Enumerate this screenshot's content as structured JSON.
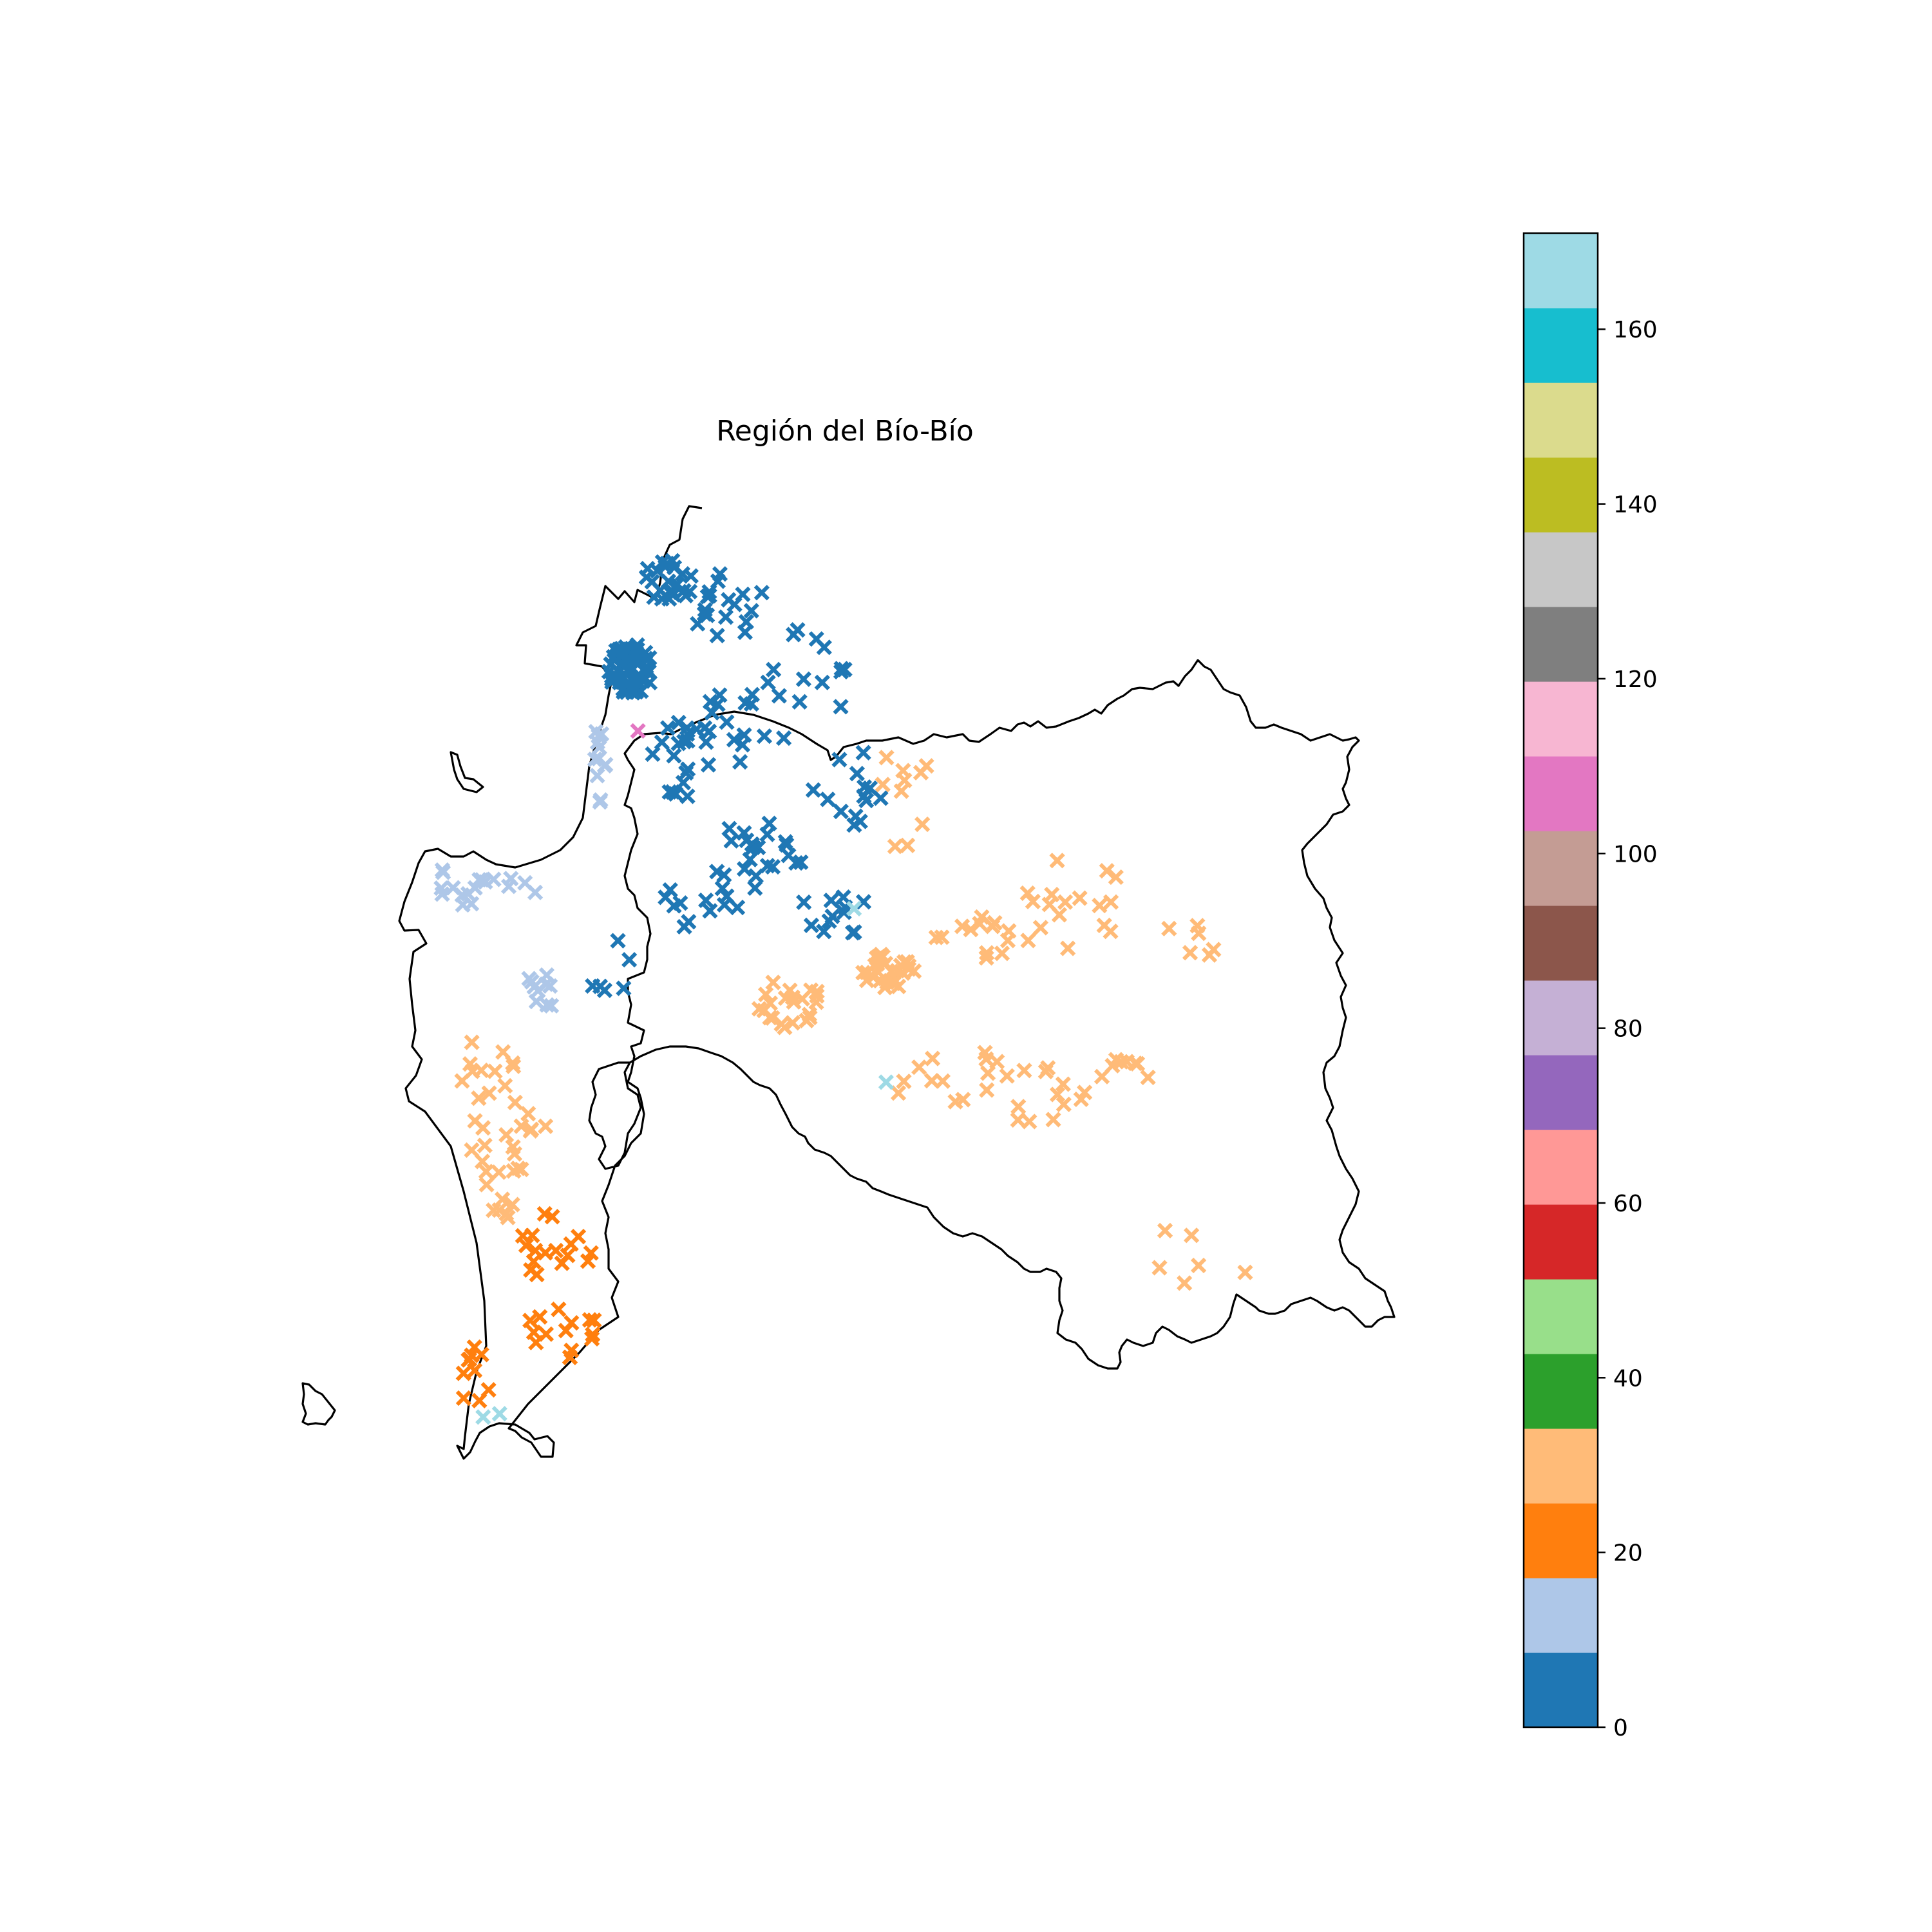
{
  "figure": {
    "title": "Región del Bío-Bío"
  },
  "colorbar": {
    "type": "discrete colorbar",
    "range": [
      0,
      171
    ],
    "ticks": [
      {
        "value": 0,
        "label": "0"
      },
      {
        "value": 20,
        "label": "20"
      },
      {
        "value": 40,
        "label": "40"
      },
      {
        "value": 60,
        "label": "60"
      },
      {
        "value": 80,
        "label": "80"
      },
      {
        "value": 100,
        "label": "100"
      },
      {
        "value": 120,
        "label": "120"
      },
      {
        "value": 140,
        "label": "140"
      },
      {
        "value": 160,
        "label": "160"
      }
    ],
    "colors": [
      "#1f77b4",
      "#aec7e8",
      "#ff7f0e",
      "#ffbb78",
      "#2ca02c",
      "#98df8a",
      "#d62728",
      "#ff9896",
      "#9467bd",
      "#c5b0d5",
      "#8c564b",
      "#c49c94",
      "#e377c2",
      "#f7b6d2",
      "#7f7f7f",
      "#c7c7c7",
      "#bcbd22",
      "#dbdb8d",
      "#17becf",
      "#9edae5"
    ]
  },
  "map": {
    "marker_symbol": "x",
    "marker_groups": [
      {
        "color": "#1f77b4",
        "value_band": "0-8"
      },
      {
        "color": "#aec7e8",
        "value_band": "9-17"
      },
      {
        "color": "#ff7f0e",
        "value_band": "17-25"
      },
      {
        "color": "#ffbb78",
        "value_band": "26-34"
      },
      {
        "color": "#e377c2",
        "value_band": "103-111"
      },
      {
        "color": "#9edae5",
        "value_band": "162-171"
      }
    ]
  }
}
